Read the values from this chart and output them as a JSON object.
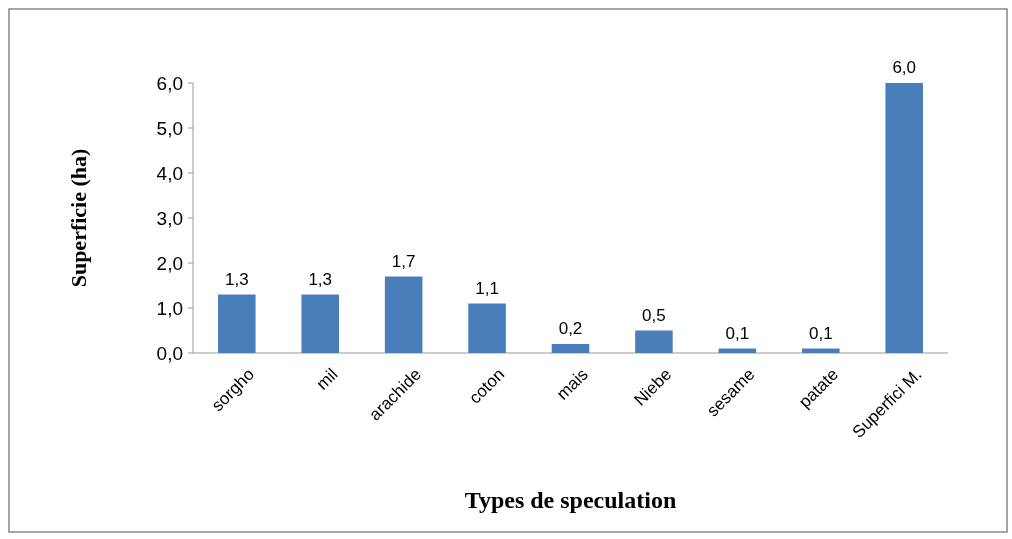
{
  "chart_data": {
    "type": "bar",
    "xlabel": "Types de speculation",
    "ylabel": "Superficie (ha)",
    "categories": [
      "sorgho",
      "mil",
      "arachide",
      "coton",
      "mais",
      "Niebe",
      "sesame",
      "patate",
      "Superfici M."
    ],
    "values": [
      1.3,
      1.3,
      1.7,
      1.1,
      0.2,
      0.5,
      0.1,
      0.1,
      6.0
    ],
    "value_labels": [
      "1,3",
      "1,3",
      "1,7",
      "1,1",
      "0,2",
      "0,5",
      "0,1",
      "0,1",
      "6,0"
    ],
    "color": "#4a7ebb",
    "ylim": [
      0,
      6
    ],
    "yticks": [
      {
        "value": 0,
        "label": "0,0"
      },
      {
        "value": 1,
        "label": "1,0"
      },
      {
        "value": 2,
        "label": "2,0"
      },
      {
        "value": 3,
        "label": "3,0"
      },
      {
        "value": 4,
        "label": "4,0"
      },
      {
        "value": 5,
        "label": "5,0"
      },
      {
        "value": 6,
        "label": "6,0"
      }
    ],
    "grid": false
  }
}
